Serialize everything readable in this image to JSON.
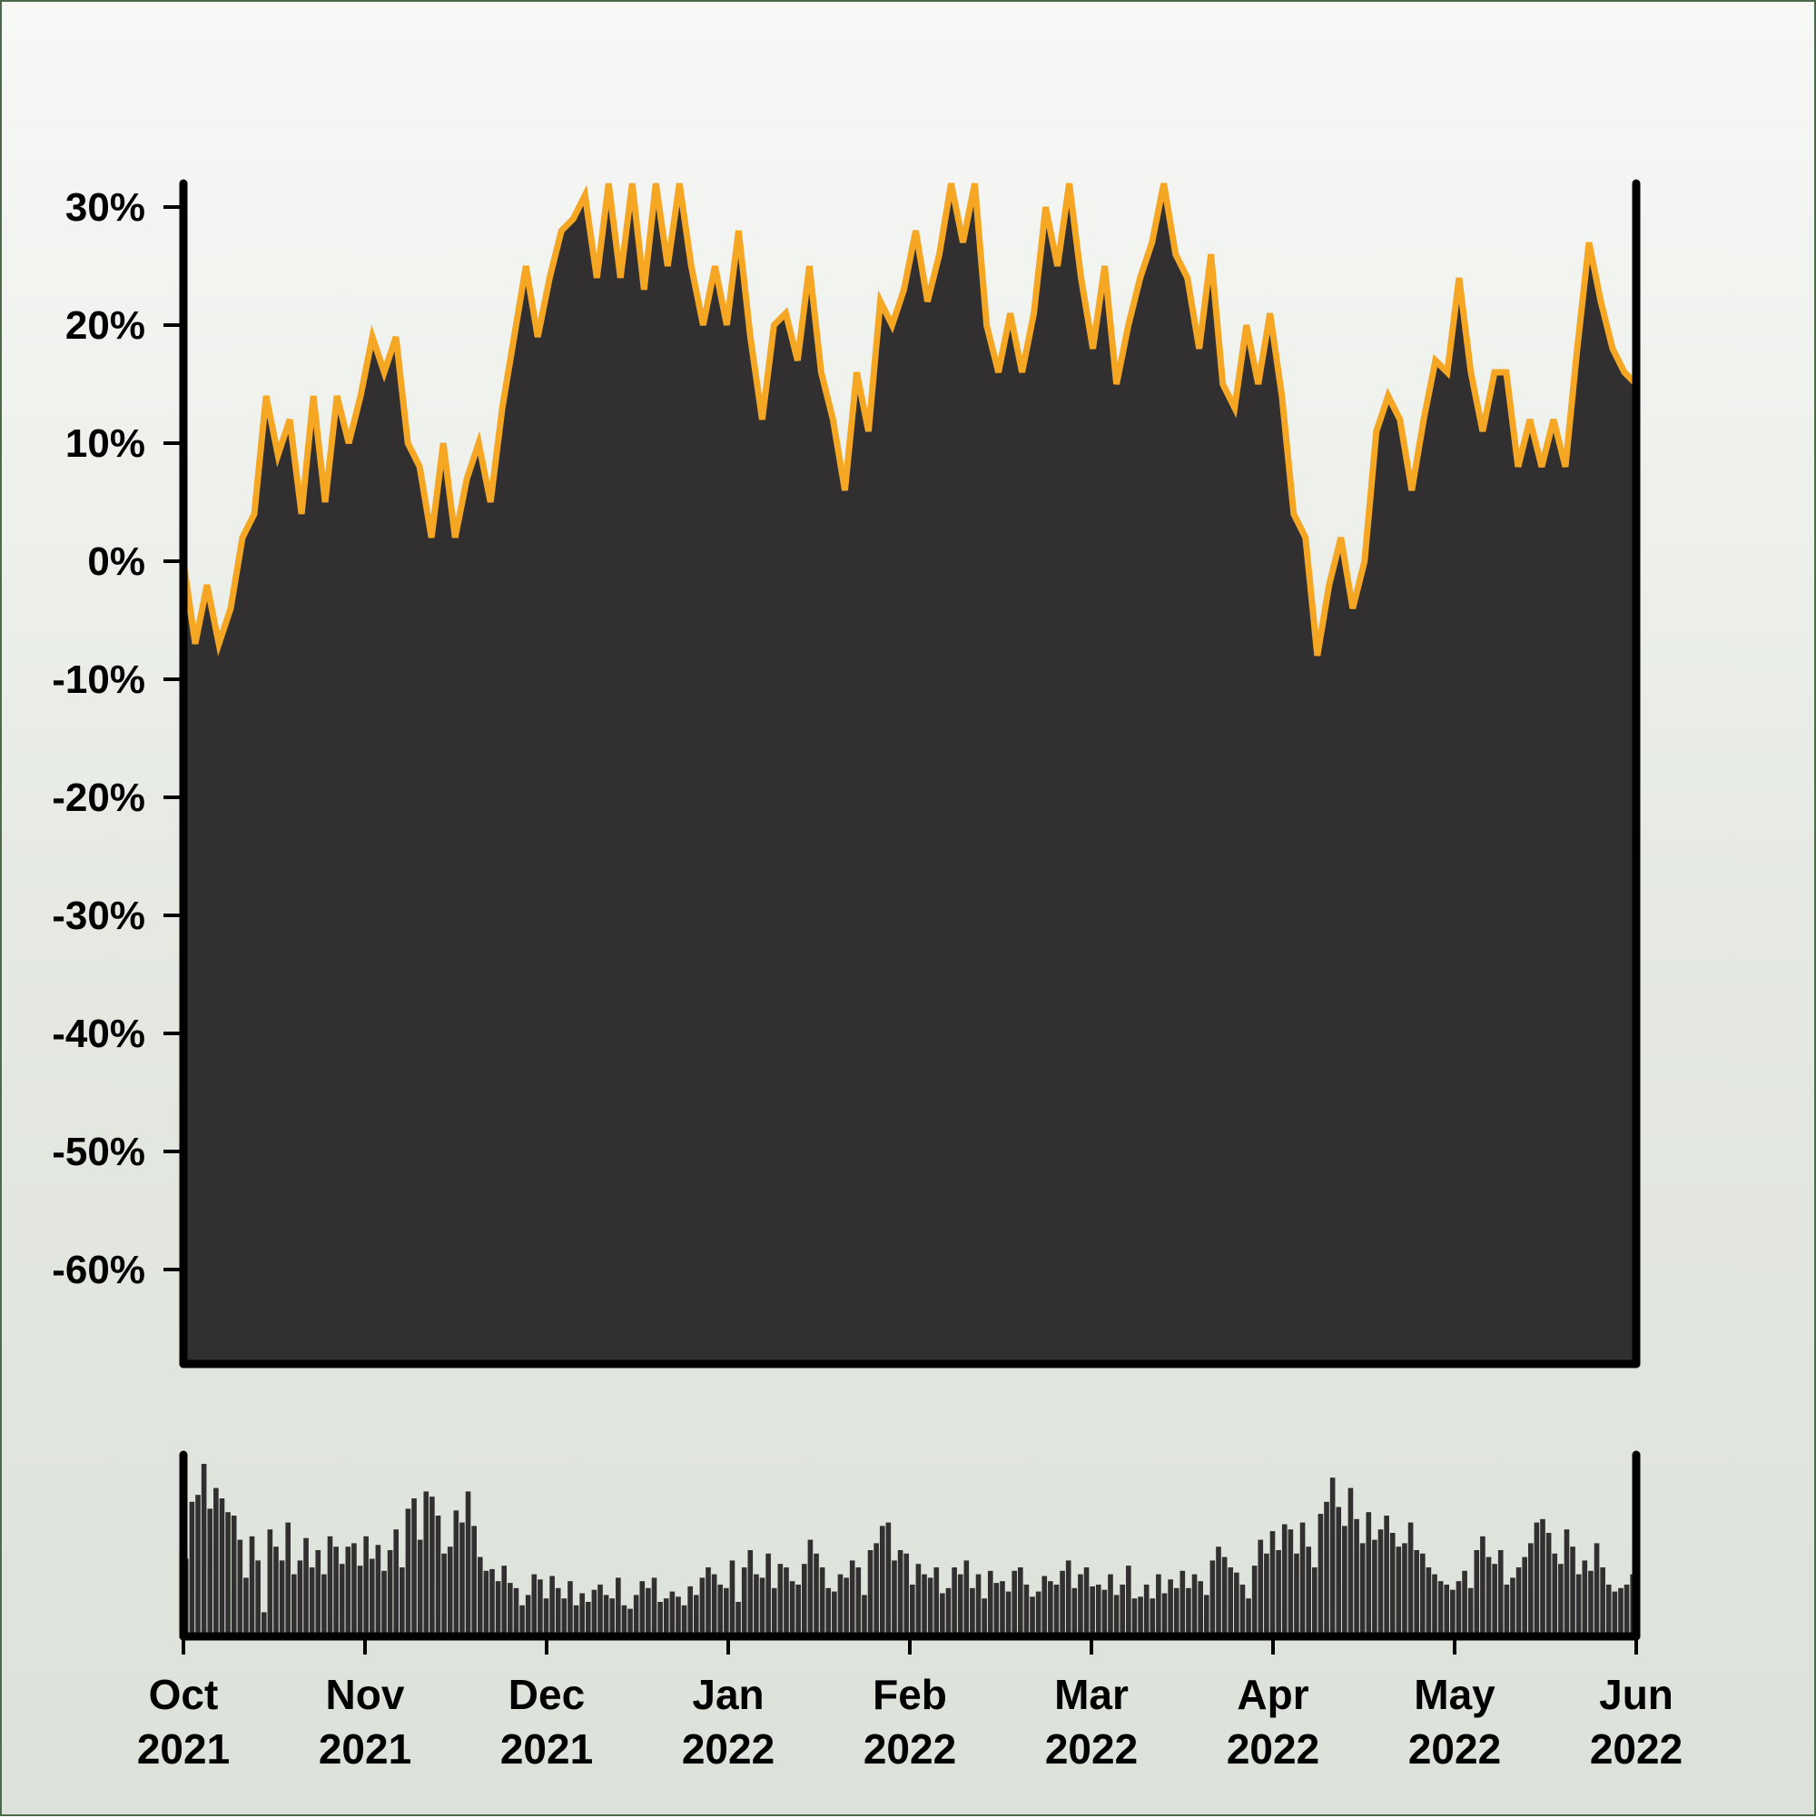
{
  "colors": {
    "area": "#312f30",
    "line": "#f5a623",
    "axis": "#000000"
  },
  "chart_data": [
    {
      "type": "area",
      "name": "price-change",
      "ylim": [
        -68,
        32
      ],
      "y_ticks": [
        30,
        20,
        10,
        0,
        -10,
        -20,
        -30,
        -40,
        -50,
        -60
      ],
      "y_tick_labels": [
        "30%",
        "20%",
        "10%",
        "0%",
        "-10%",
        "-20%",
        "-30%",
        "-40%",
        "-50%",
        "-60%"
      ],
      "x_range": [
        "2021-10-01",
        "2022-06-01"
      ],
      "points": [
        [
          "2021-10-01",
          0
        ],
        [
          "2021-10-03",
          -7
        ],
        [
          "2021-10-05",
          -2
        ],
        [
          "2021-10-07",
          -7
        ],
        [
          "2021-10-09",
          -4
        ],
        [
          "2021-10-12",
          2
        ],
        [
          "2021-10-14",
          4
        ],
        [
          "2021-10-20",
          14
        ],
        [
          "2021-10-22",
          9
        ],
        [
          "2021-10-24",
          12
        ],
        [
          "2021-10-27",
          4
        ],
        [
          "2021-10-30",
          14
        ],
        [
          "2021-11-02",
          5
        ],
        [
          "2021-11-05",
          14
        ],
        [
          "2021-11-07",
          10
        ],
        [
          "2021-11-09",
          14
        ],
        [
          "2021-11-12",
          19
        ],
        [
          "2021-11-14",
          16
        ],
        [
          "2021-11-16",
          19
        ],
        [
          "2021-11-19",
          10
        ],
        [
          "2021-11-21",
          8
        ],
        [
          "2021-11-24",
          2
        ],
        [
          "2021-11-26",
          10
        ],
        [
          "2021-11-28",
          2
        ],
        [
          "2021-11-30",
          7
        ],
        [
          "2021-12-03",
          10
        ],
        [
          "2021-12-05",
          5
        ],
        [
          "2021-12-08",
          13
        ],
        [
          "2021-12-10",
          19
        ],
        [
          "2021-12-13",
          25
        ],
        [
          "2021-12-15",
          19
        ],
        [
          "2021-12-17",
          24
        ],
        [
          "2021-12-20",
          28
        ],
        [
          "2021-12-22",
          29
        ],
        [
          "2021-12-25",
          31
        ],
        [
          "2021-12-27",
          24
        ],
        [
          "2021-12-30",
          32
        ],
        [
          "2022-01-01",
          24
        ],
        [
          "2022-01-04",
          32
        ],
        [
          "2022-01-06",
          23
        ],
        [
          "2022-01-09",
          32
        ],
        [
          "2022-01-11",
          25
        ],
        [
          "2022-01-14",
          32
        ],
        [
          "2022-01-16",
          25
        ],
        [
          "2022-01-19",
          20
        ],
        [
          "2022-01-21",
          25
        ],
        [
          "2022-01-23",
          20
        ],
        [
          "2022-01-25",
          28
        ],
        [
          "2022-01-28",
          19
        ],
        [
          "2022-01-30",
          12
        ],
        [
          "2022-02-02",
          20
        ],
        [
          "2022-02-04",
          21
        ],
        [
          "2022-02-07",
          17
        ],
        [
          "2022-02-09",
          25
        ],
        [
          "2022-02-12",
          16
        ],
        [
          "2022-02-14",
          12
        ],
        [
          "2022-02-17",
          6
        ],
        [
          "2022-02-20",
          16
        ],
        [
          "2022-02-22",
          11
        ],
        [
          "2022-02-25",
          22
        ],
        [
          "2022-02-27",
          20
        ],
        [
          "2022-03-02",
          23
        ],
        [
          "2022-03-04",
          28
        ],
        [
          "2022-03-07",
          22
        ],
        [
          "2022-03-09",
          26
        ],
        [
          "2022-03-12",
          32
        ],
        [
          "2022-03-14",
          27
        ],
        [
          "2022-03-16",
          32
        ],
        [
          "2022-03-19",
          20
        ],
        [
          "2022-03-21",
          16
        ],
        [
          "2022-03-23",
          21
        ],
        [
          "2022-03-26",
          16
        ],
        [
          "2022-03-28",
          21
        ],
        [
          "2022-03-31",
          30
        ],
        [
          "2022-04-02",
          25
        ],
        [
          "2022-04-05",
          32
        ],
        [
          "2022-04-07",
          24
        ],
        [
          "2022-04-10",
          18
        ],
        [
          "2022-04-12",
          25
        ],
        [
          "2022-04-15",
          15
        ],
        [
          "2022-04-17",
          20
        ],
        [
          "2022-04-20",
          24
        ],
        [
          "2022-04-22",
          27
        ],
        [
          "2022-04-25",
          32
        ],
        [
          "2022-04-27",
          26
        ],
        [
          "2022-04-30",
          24
        ],
        [
          "2022-05-02",
          18
        ],
        [
          "2022-05-04",
          26
        ],
        [
          "2022-05-07",
          15
        ],
        [
          "2022-05-09",
          13
        ],
        [
          "2022-05-11",
          20
        ],
        [
          "2022-05-14",
          15
        ],
        [
          "2022-05-16",
          21
        ],
        [
          "2022-05-18",
          14
        ],
        [
          "2022-05-21",
          4
        ],
        [
          "2022-05-23",
          2
        ],
        [
          "2022-05-25",
          -8
        ],
        [
          "2022-05-27",
          -2
        ],
        [
          "2022-05-29",
          2
        ],
        [
          "2022-05-31",
          -4
        ],
        [
          "2022-04-01",
          0
        ],
        [
          "2022-04-03",
          11
        ],
        [
          "2022-04-06",
          14
        ],
        [
          "2022-04-09",
          12
        ],
        [
          "2022-04-11",
          6
        ],
        [
          "2022-04-13",
          12
        ],
        [
          "2022-04-16",
          17
        ],
        [
          "2022-04-18",
          16
        ],
        [
          "2022-04-21",
          24
        ],
        [
          "2022-04-24",
          16
        ],
        [
          "2022-04-26",
          11
        ],
        [
          "2022-04-28",
          16
        ],
        [
          "2022-05-01",
          16
        ],
        [
          "2022-05-03",
          8
        ],
        [
          "2022-05-06",
          12
        ],
        [
          "2022-05-08",
          8
        ],
        [
          "2022-05-11",
          12
        ],
        [
          "2022-05-13",
          8
        ],
        [
          "2022-05-16",
          18
        ],
        [
          "2022-05-19",
          27
        ],
        [
          "2022-05-22",
          22
        ],
        [
          "2022-05-25",
          18
        ],
        [
          "2022-05-28",
          16
        ],
        [
          "2022-05-31",
          15
        ]
      ],
      "y_series": [
        0,
        -7,
        -2,
        -7,
        -4,
        2,
        4,
        14,
        9,
        12,
        4,
        14,
        5,
        14,
        10,
        14,
        19,
        16,
        19,
        10,
        8,
        2,
        10,
        2,
        7,
        10,
        5,
        13,
        19,
        25,
        19,
        24,
        28,
        29,
        31,
        24,
        32,
        24,
        32,
        23,
        32,
        25,
        32,
        25,
        20,
        25,
        20,
        28,
        19,
        12,
        20,
        21,
        17,
        25,
        16,
        12,
        6,
        16,
        11,
        22,
        20,
        23,
        28,
        22,
        26,
        32,
        27,
        32,
        20,
        16,
        21,
        16,
        21,
        30,
        25,
        32,
        24,
        18,
        25,
        15,
        20,
        24,
        27,
        32,
        26,
        24,
        18,
        26,
        15,
        13,
        20,
        15,
        21,
        14,
        4,
        2,
        -8,
        -2,
        2,
        -4,
        0,
        11,
        14,
        12,
        6,
        12,
        17,
        16,
        24,
        16,
        11,
        16,
        16,
        8,
        12,
        8,
        12,
        8,
        18,
        27,
        22,
        18,
        16,
        15
      ]
    },
    {
      "type": "bar",
      "name": "volume",
      "x_tick_labels": [
        [
          "Oct",
          "2021"
        ],
        [
          "Nov",
          "2021"
        ],
        [
          "Dec",
          "2021"
        ],
        [
          "Jan",
          "2022"
        ],
        [
          "Feb",
          "2022"
        ],
        [
          "Mar",
          "2022"
        ],
        [
          "Apr",
          "2022"
        ],
        [
          "May",
          "2022"
        ],
        [
          "Jun",
          "2022"
        ]
      ],
      "values": [
        45,
        78,
        82,
        100,
        74,
        86,
        80,
        72,
        70,
        56,
        34,
        58,
        44,
        14,
        62,
        52,
        44,
        66,
        36,
        44,
        57,
        40,
        50,
        36,
        58,
        52,
        42,
        52,
        54,
        41,
        58,
        45,
        53,
        38,
        50,
        62,
        40,
        74,
        80,
        56,
        84,
        81,
        70,
        48,
        52,
        73,
        66,
        84,
        64,
        46,
        38,
        39,
        32,
        41,
        31,
        28,
        18,
        24,
        36,
        33,
        22,
        35,
        28,
        22,
        32,
        18,
        25,
        20,
        27,
        30,
        24,
        22,
        34,
        18,
        16,
        24,
        32,
        28,
        34,
        20,
        22,
        26,
        23,
        18,
        29,
        24,
        34,
        40,
        36,
        30,
        28,
        44,
        20,
        40,
        50,
        36,
        34,
        48,
        28,
        42,
        40,
        32,
        30,
        42,
        56,
        48,
        40,
        28,
        26,
        36,
        34,
        44,
        40,
        24,
        50,
        54,
        64,
        66,
        44,
        50,
        48,
        30,
        42,
        36,
        34,
        40,
        25,
        28,
        40,
        36,
        44,
        28,
        36,
        22,
        38,
        31,
        32,
        26,
        38,
        40,
        30,
        23,
        26,
        35,
        32,
        30,
        38,
        44,
        28,
        36,
        40,
        29,
        30,
        27,
        36,
        24,
        30,
        41,
        22,
        23,
        30,
        22,
        36,
        25,
        33,
        28,
        38,
        28,
        36,
        32,
        24,
        44,
        52,
        46,
        40,
        37,
        30,
        22,
        41,
        56,
        48,
        61,
        50,
        65,
        62,
        48,
        66,
        52,
        40,
        71,
        78,
        92,
        75,
        64,
        86,
        68,
        54,
        72,
        56,
        62,
        70,
        60,
        52,
        54,
        66,
        50,
        48,
        40,
        36,
        32,
        30,
        27,
        32,
        38,
        28,
        50,
        58,
        46,
        42,
        50,
        30,
        34,
        40,
        46,
        54,
        66,
        68,
        60,
        48,
        42,
        62,
        52,
        36,
        44,
        38,
        54,
        40,
        30,
        26,
        28,
        30,
        36
      ]
    }
  ]
}
